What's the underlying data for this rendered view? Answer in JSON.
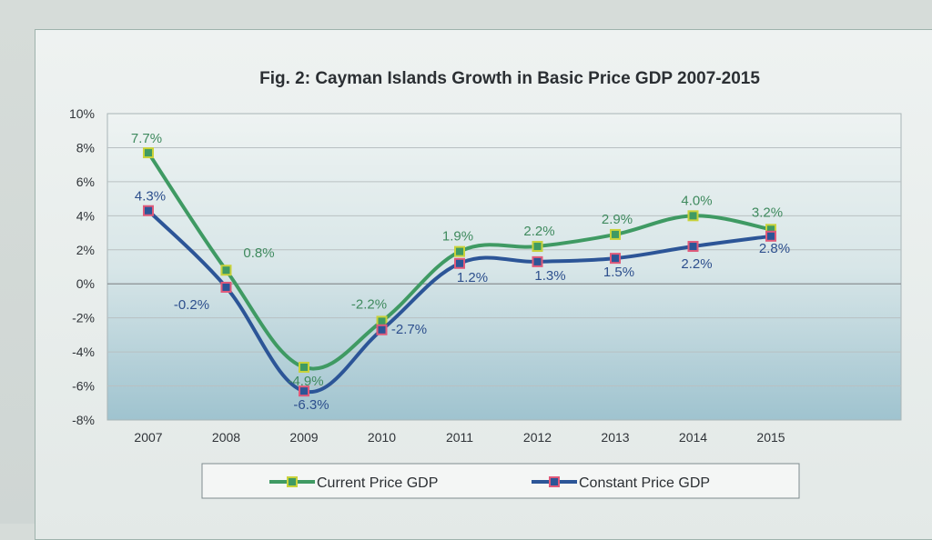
{
  "chart_data": {
    "type": "line",
    "title": "Fig. 2: Cayman Islands Growth in Basic Price GDP 2007-2015",
    "categories": [
      "2007",
      "2008",
      "2009",
      "2010",
      "2011",
      "2012",
      "2013",
      "2014",
      "2015"
    ],
    "y_ticks": [
      "10%",
      "8%",
      "6%",
      "4%",
      "2%",
      "0%",
      "-2%",
      "-4%",
      "-6%",
      "-8%"
    ],
    "ylim": [
      -8,
      10
    ],
    "grid": true,
    "legend_position": "bottom",
    "series": [
      {
        "name": "Current Price GDP",
        "color": "#3f9a63",
        "marker_color": "#c9d23a",
        "values": [
          7.7,
          0.8,
          -4.9,
          -2.2,
          1.9,
          2.2,
          2.9,
          4.0,
          3.2
        ],
        "labels": [
          "7.7%",
          "0.8%",
          "-4.9%",
          "-2.2%",
          "1.9%",
          "2.2%",
          "2.9%",
          "4.0%",
          "3.2%"
        ]
      },
      {
        "name": "Constant Price GDP",
        "color": "#2c5597",
        "marker_color": "#e05a7a",
        "values": [
          4.3,
          -0.2,
          -6.3,
          -2.7,
          1.2,
          1.3,
          1.5,
          2.2,
          2.8
        ],
        "labels": [
          "4.3%",
          "-0.2%",
          "-6.3%",
          "-2.7%",
          "1.2%",
          "1.3%",
          "1.5%",
          "2.2%",
          "2.8%"
        ]
      }
    ]
  }
}
